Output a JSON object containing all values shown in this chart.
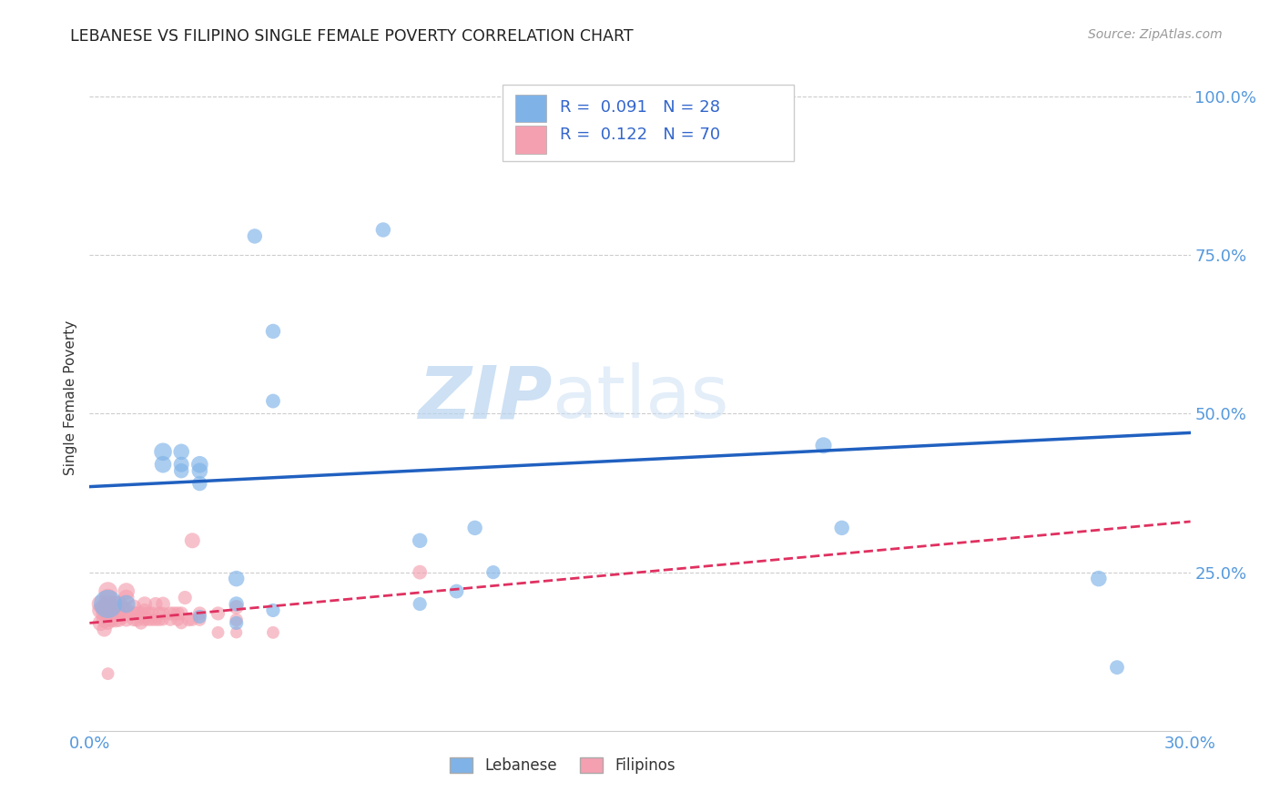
{
  "title": "LEBANESE VS FILIPINO SINGLE FEMALE POVERTY CORRELATION CHART",
  "source": "Source: ZipAtlas.com",
  "ylabel": "Single Female Poverty",
  "xlim": [
    0.0,
    0.3
  ],
  "ylim": [
    0.0,
    1.05
  ],
  "xticks": [
    0.0,
    0.05,
    0.1,
    0.15,
    0.2,
    0.25,
    0.3
  ],
  "xticklabels": [
    "0.0%",
    "",
    "",
    "",
    "",
    "",
    "30.0%"
  ],
  "yticks": [
    0.25,
    0.5,
    0.75,
    1.0
  ],
  "yticklabels": [
    "25.0%",
    "50.0%",
    "75.0%",
    "100.0%"
  ],
  "legend_R_lebanese": "0.091",
  "legend_N_lebanese": "28",
  "legend_R_filipino": "0.122",
  "legend_N_filipino": "70",
  "lebanese_color": "#7fb3e8",
  "filipino_color": "#f4a0b0",
  "lebanese_line_color": "#2060c0",
  "filipino_line_color": "#e03060",
  "lebanese_x": [
    0.005,
    0.01,
    0.02,
    0.02,
    0.025,
    0.025,
    0.025,
    0.03,
    0.03,
    0.03,
    0.03,
    0.04,
    0.04,
    0.04,
    0.045,
    0.05,
    0.05,
    0.05,
    0.08,
    0.09,
    0.09,
    0.1,
    0.105,
    0.11,
    0.2,
    0.205,
    0.275,
    0.28
  ],
  "lebanese_y": [
    0.2,
    0.2,
    0.44,
    0.42,
    0.44,
    0.42,
    0.41,
    0.42,
    0.41,
    0.39,
    0.18,
    0.24,
    0.2,
    0.17,
    0.78,
    0.63,
    0.52,
    0.19,
    0.79,
    0.3,
    0.2,
    0.22,
    0.32,
    0.25,
    0.45,
    0.32,
    0.24,
    0.1
  ],
  "filipino_x": [
    0.003,
    0.003,
    0.003,
    0.004,
    0.004,
    0.004,
    0.004,
    0.005,
    0.005,
    0.005,
    0.005,
    0.005,
    0.005,
    0.005,
    0.006,
    0.006,
    0.006,
    0.007,
    0.007,
    0.008,
    0.008,
    0.008,
    0.009,
    0.009,
    0.01,
    0.01,
    0.01,
    0.01,
    0.012,
    0.012,
    0.012,
    0.013,
    0.013,
    0.014,
    0.014,
    0.015,
    0.015,
    0.015,
    0.015,
    0.016,
    0.016,
    0.017,
    0.017,
    0.018,
    0.018,
    0.019,
    0.019,
    0.02,
    0.02,
    0.02,
    0.022,
    0.022,
    0.023,
    0.024,
    0.024,
    0.025,
    0.025,
    0.026,
    0.027,
    0.028,
    0.028,
    0.03,
    0.03,
    0.035,
    0.035,
    0.04,
    0.04,
    0.04,
    0.05,
    0.09
  ],
  "filipino_y": [
    0.2,
    0.19,
    0.17,
    0.195,
    0.185,
    0.175,
    0.16,
    0.22,
    0.21,
    0.2,
    0.19,
    0.18,
    0.17,
    0.09,
    0.195,
    0.185,
    0.175,
    0.2,
    0.175,
    0.2,
    0.185,
    0.175,
    0.195,
    0.18,
    0.22,
    0.21,
    0.19,
    0.175,
    0.195,
    0.185,
    0.175,
    0.185,
    0.175,
    0.185,
    0.17,
    0.2,
    0.19,
    0.18,
    0.175,
    0.185,
    0.175,
    0.185,
    0.175,
    0.2,
    0.175,
    0.185,
    0.175,
    0.2,
    0.185,
    0.175,
    0.185,
    0.175,
    0.185,
    0.185,
    0.175,
    0.185,
    0.17,
    0.21,
    0.175,
    0.3,
    0.175,
    0.185,
    0.175,
    0.185,
    0.155,
    0.195,
    0.175,
    0.155,
    0.155,
    0.25
  ],
  "lebanese_sizes": [
    500,
    200,
    200,
    180,
    160,
    150,
    140,
    180,
    160,
    140,
    120,
    160,
    140,
    120,
    140,
    140,
    130,
    120,
    140,
    140,
    120,
    130,
    140,
    120,
    170,
    140,
    160,
    130
  ],
  "filipino_sizes": [
    200,
    180,
    160,
    200,
    180,
    160,
    140,
    220,
    200,
    180,
    160,
    140,
    120,
    100,
    180,
    160,
    140,
    180,
    150,
    170,
    150,
    130,
    160,
    140,
    180,
    160,
    140,
    120,
    150,
    130,
    110,
    140,
    120,
    130,
    110,
    140,
    120,
    110,
    100,
    120,
    100,
    120,
    100,
    120,
    100,
    120,
    100,
    130,
    110,
    90,
    120,
    100,
    120,
    120,
    100,
    120,
    100,
    120,
    110,
    150,
    100,
    120,
    100,
    120,
    100,
    130,
    110,
    90,
    100,
    130
  ],
  "watermark_zip": "ZIP",
  "watermark_atlas": "atlas",
  "background_color": "#ffffff",
  "grid_color": "#cccccc",
  "tick_color": "#5599dd",
  "title_color": "#222222",
  "source_color": "#999999",
  "ylabel_color": "#333333"
}
